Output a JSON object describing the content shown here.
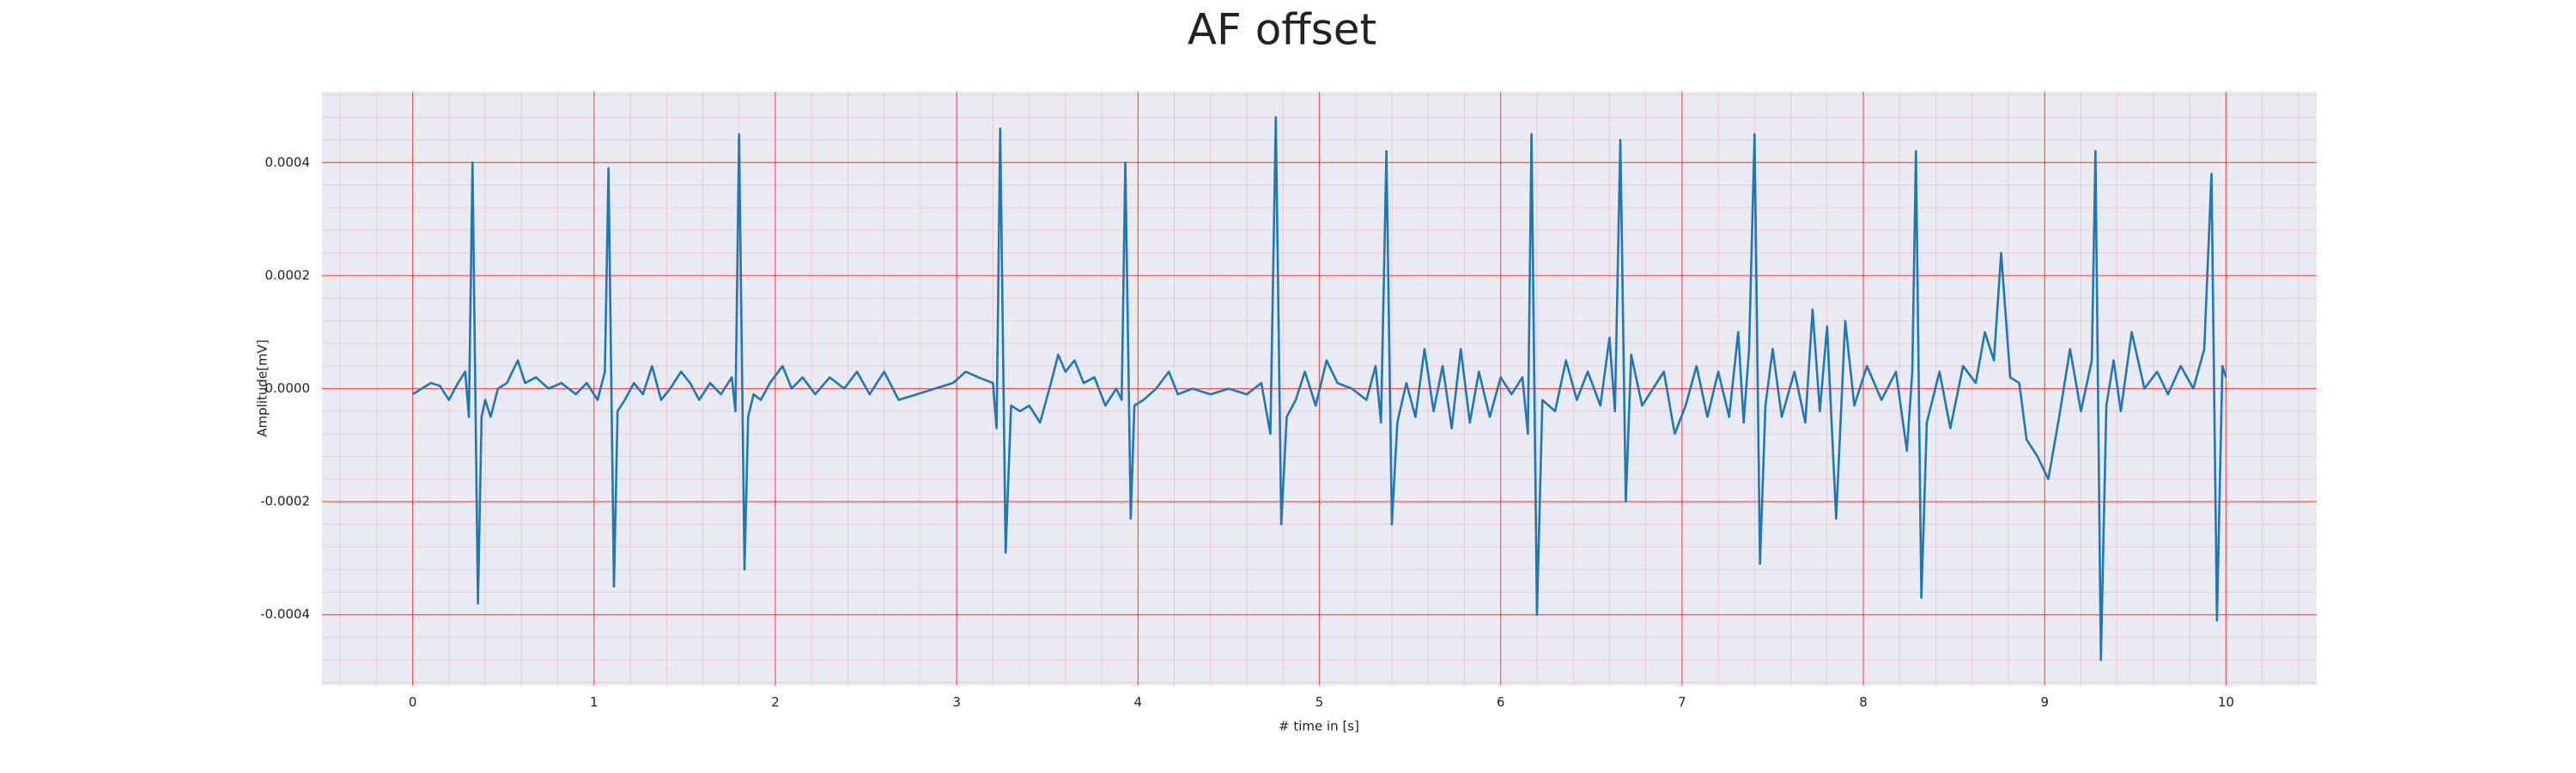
{
  "chart_data": {
    "type": "line",
    "title": "AF offset",
    "xlabel": "# time in [s]",
    "ylabel": "Amplitude[mV]",
    "color": "#1f77b4",
    "grid": true,
    "grid_color": "#ff0000",
    "minor_grid": true,
    "minor_grid_color": "#f4a6b8",
    "xlim": [
      -0.5,
      10.5
    ],
    "ylim": [
      -0.000525,
      0.000525
    ],
    "xticks": [
      0,
      1,
      2,
      3,
      4,
      5,
      6,
      7,
      8,
      9,
      10
    ],
    "yticks": [
      -0.0004,
      -0.0002,
      {
        "value": 0,
        "label": "0.0000"
      },
      0.0002,
      0.0004
    ],
    "x": [
      0,
      0.05,
      0.1,
      0.15,
      0.2,
      0.25,
      0.29,
      0.31,
      0.33,
      0.36,
      0.38,
      0.4,
      0.43,
      0.47,
      0.52,
      0.58,
      0.62,
      0.68,
      0.75,
      0.82,
      0.9,
      0.96,
      1.02,
      1.06,
      1.08,
      1.11,
      1.13,
      1.17,
      1.22,
      1.27,
      1.32,
      1.37,
      1.42,
      1.48,
      1.53,
      1.58,
      1.64,
      1.7,
      1.76,
      1.78,
      1.8,
      1.83,
      1.85,
      1.88,
      1.92,
      1.97,
      2.04,
      2.09,
      2.15,
      2.22,
      2.3,
      2.38,
      2.45,
      2.52,
      2.6,
      2.68,
      2.78,
      2.88,
      2.98,
      3.05,
      3.12,
      3.2,
      3.22,
      3.24,
      3.27,
      3.3,
      3.35,
      3.4,
      3.46,
      3.52,
      3.56,
      3.6,
      3.65,
      3.7,
      3.76,
      3.82,
      3.88,
      3.91,
      3.93,
      3.96,
      3.98,
      4.03,
      4.1,
      4.17,
      4.22,
      4.3,
      4.4,
      4.5,
      4.6,
      4.68,
      4.73,
      4.76,
      4.79,
      4.82,
      4.87,
      4.92,
      4.98,
      5.04,
      5.1,
      5.18,
      5.26,
      5.31,
      5.34,
      5.37,
      5.4,
      5.43,
      5.48,
      5.53,
      5.58,
      5.63,
      5.68,
      5.73,
      5.78,
      5.83,
      5.88,
      5.94,
      6.0,
      6.06,
      6.12,
      6.15,
      6.17,
      6.2,
      6.23,
      6.3,
      6.36,
      6.42,
      6.48,
      6.55,
      6.6,
      6.63,
      6.66,
      6.69,
      6.72,
      6.78,
      6.84,
      6.9,
      6.96,
      7.02,
      7.08,
      7.14,
      7.2,
      7.26,
      7.31,
      7.34,
      7.37,
      7.4,
      7.43,
      7.46,
      7.5,
      7.55,
      7.62,
      7.68,
      7.72,
      7.76,
      7.8,
      7.85,
      7.9,
      7.95,
      8.02,
      8.1,
      8.18,
      8.24,
      8.27,
      8.29,
      8.32,
      8.35,
      8.42,
      8.48,
      8.55,
      8.62,
      8.67,
      8.72,
      8.76,
      8.81,
      8.86,
      8.9,
      8.96,
      9.02,
      9.08,
      9.14,
      9.2,
      9.26,
      9.28,
      9.31,
      9.34,
      9.38,
      9.42,
      9.48,
      9.55,
      9.62,
      9.68,
      9.75,
      9.82,
      9.88,
      9.92,
      9.95,
      9.98,
      10.0
    ],
    "values": [
      -1e-05,
      0,
      1e-05,
      5e-06,
      -2e-05,
      1e-05,
      3e-05,
      -5e-05,
      0.0004,
      -0.00038,
      -5e-05,
      -2e-05,
      -5e-05,
      0,
      1e-05,
      5e-05,
      1e-05,
      2e-05,
      0,
      1e-05,
      -1e-05,
      1e-05,
      -2e-05,
      3e-05,
      0.00039,
      -0.00035,
      -4e-05,
      -2e-05,
      1e-05,
      -1e-05,
      4e-05,
      -2e-05,
      0,
      3e-05,
      1e-05,
      -2e-05,
      1e-05,
      -1e-05,
      2e-05,
      -4e-05,
      0.00045,
      -0.00032,
      -5e-05,
      -1e-05,
      -2e-05,
      1e-05,
      4e-05,
      0,
      2e-05,
      -1e-05,
      2e-05,
      0,
      3e-05,
      -1e-05,
      3e-05,
      -2e-05,
      -1e-05,
      0,
      1e-05,
      3e-05,
      2e-05,
      1e-05,
      -7e-05,
      0.00046,
      -0.00029,
      -3e-05,
      -4e-05,
      -3e-05,
      -6e-05,
      1e-05,
      6e-05,
      3e-05,
      5e-05,
      1e-05,
      2e-05,
      -3e-05,
      0,
      -2e-05,
      0.0004,
      -0.00023,
      -3e-05,
      -2e-05,
      0,
      3e-05,
      -1e-05,
      0,
      -1e-05,
      0,
      -1e-05,
      1e-05,
      -8e-05,
      0.00048,
      -0.00024,
      -5e-05,
      -2e-05,
      3e-05,
      -3e-05,
      5e-05,
      1e-05,
      0,
      -2e-05,
      4e-05,
      -6e-05,
      0.00042,
      -0.00024,
      -6e-05,
      1e-05,
      -5e-05,
      7e-05,
      -4e-05,
      4e-05,
      -7e-05,
      7e-05,
      -6e-05,
      3e-05,
      -5e-05,
      2e-05,
      -1e-05,
      2e-05,
      -8e-05,
      0.00045,
      -0.0004,
      -2e-05,
      -4e-05,
      5e-05,
      -2e-05,
      3e-05,
      -3e-05,
      9e-05,
      -4e-05,
      0.00044,
      -0.0002,
      6e-05,
      -3e-05,
      0,
      3e-05,
      -8e-05,
      -3e-05,
      4e-05,
      -5e-05,
      3e-05,
      -5e-05,
      0.0001,
      -6e-05,
      7e-05,
      0.00045,
      -0.00031,
      -3e-05,
      7e-05,
      -5e-05,
      3e-05,
      -6e-05,
      0.00014,
      -4e-05,
      0.00011,
      -0.00023,
      0.00012,
      -3e-05,
      4e-05,
      -2e-05,
      3e-05,
      -0.00011,
      3e-05,
      0.00042,
      -0.00037,
      -6e-05,
      3e-05,
      -7e-05,
      4e-05,
      1e-05,
      0.0001,
      5e-05,
      0.00024,
      2e-05,
      1e-05,
      -9e-05,
      -0.00012,
      -0.00016,
      -5e-05,
      7e-05,
      -4e-05,
      5e-05,
      0.00042,
      -0.00048,
      -3e-05,
      5e-05,
      -4e-05,
      0.0001,
      0,
      3e-05,
      -1e-05,
      4e-05,
      0,
      7e-05,
      0.00038,
      -0.00041,
      4e-05,
      2e-05
    ]
  }
}
